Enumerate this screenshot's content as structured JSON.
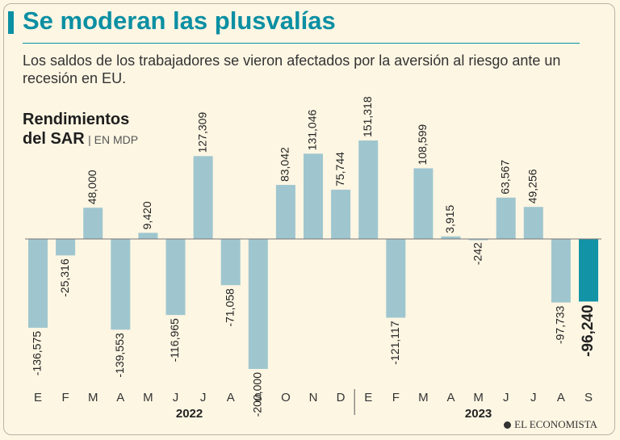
{
  "header": {
    "title": "Se moderan las plusvalías",
    "subtitle": "Los saldos de los trabajadores se vieron afectados por la aversión al riesgo ante un recesión en EU."
  },
  "chart_heading": {
    "line1": "Rendimientos",
    "line2": "del SAR",
    "units": "| EN MDP"
  },
  "colors": {
    "bar": "#9fc6cf",
    "highlight": "#1293a6",
    "accent": "#0b8fa3",
    "background": "#fdf6e3"
  },
  "chart_data": {
    "type": "bar",
    "title": "Rendimientos del SAR",
    "ylabel": "EN MDP",
    "ylim": [
      -200000,
      151318
    ],
    "categories": [
      "E",
      "F",
      "M",
      "A",
      "M",
      "J",
      "J",
      "A",
      "S",
      "O",
      "N",
      "D",
      "E",
      "F",
      "M",
      "A",
      "M",
      "J",
      "J",
      "A",
      "S"
    ],
    "values": [
      -136575,
      -25316,
      48000,
      -139553,
      9420,
      -116965,
      127309,
      -71058,
      -200000,
      83042,
      131046,
      75744,
      151318,
      -121117,
      108599,
      3915,
      -242,
      63567,
      49256,
      -97733,
      -96240
    ],
    "labels": [
      "-136,575",
      "-25,316",
      "48,000",
      "-139,553",
      "9,420",
      "-116,965",
      "127,309",
      "-71,058",
      "-200,000",
      "83,042",
      "131,046",
      "75,744",
      "151,318",
      "-121,117",
      "108,599",
      "3,915",
      "-242",
      "63,567",
      "49,256",
      "-97,733",
      "-96,240"
    ],
    "highlight_index": 20,
    "years": [
      {
        "label": "2022",
        "start": 0,
        "end": 11
      },
      {
        "label": "2023",
        "start": 12,
        "end": 20
      }
    ]
  },
  "footer": {
    "brand": "EL ECONOMISTA"
  }
}
